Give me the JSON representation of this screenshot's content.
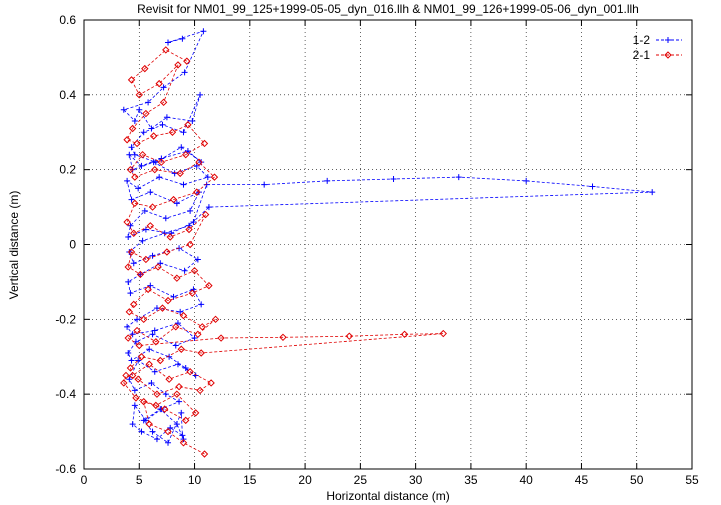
{
  "chart_data": {
    "type": "scatter",
    "title": "Revisit for NM01_99_125+1999-05-05_dyn_016.llh & NM01_99_126+1999-05-06_dyn_001.llh",
    "xlabel": "Horizontal distance (m)",
    "ylabel": "Vertical distance (m)",
    "xlim": [
      0,
      55
    ],
    "ylim": [
      -0.6,
      0.6
    ],
    "x_ticks": [
      0,
      5,
      10,
      15,
      20,
      25,
      30,
      35,
      40,
      45,
      50,
      55
    ],
    "y_ticks": [
      -0.6,
      -0.4,
      -0.2,
      0,
      0.2,
      0.4,
      0.6
    ],
    "x_tick_labels": [
      "0",
      "5",
      "10",
      "15",
      "20",
      "25",
      "30",
      "35",
      "40",
      "45",
      "50",
      "55"
    ],
    "y_tick_labels": [
      "-0.6",
      "-0.4",
      "-0.2",
      "0",
      "0.2",
      "0.4",
      "0.6"
    ],
    "grid": true,
    "legend_position": "top-right",
    "series": [
      {
        "name": "1-2",
        "color": "#0000ff",
        "marker": "plus",
        "x": [
          8.9,
          7.6,
          10.8,
          9.1,
          7.2,
          5.8,
          3.6,
          4.6,
          5.0,
          6.1,
          7.5,
          9.8,
          10.5,
          9.0,
          7.1,
          5.4,
          4.3,
          4.6,
          6.5,
          8.8,
          10.6,
          9.4,
          7.0,
          5.2,
          4.1,
          4.4,
          6.3,
          8.2,
          10.2,
          11.2,
          9.0,
          6.8,
          4.9,
          3.9,
          4.3,
          6.0,
          8.4,
          10.4,
          9.6,
          7.4,
          5.5,
          4.2,
          4.0,
          5.6,
          7.9,
          9.9,
          11.1,
          16.3,
          22.0,
          28.0,
          33.9,
          40.0,
          46.0,
          51.4,
          11.3,
          9.5,
          7.3,
          5.3,
          4.1,
          4.5,
          6.2,
          8.6,
          10.3,
          9.1,
          6.9,
          5.1,
          4.0,
          4.2,
          6.0,
          8.1,
          9.9,
          10.6,
          8.7,
          6.6,
          4.8,
          3.9,
          4.4,
          6.4,
          8.5,
          10.0,
          8.3,
          6.2,
          4.7,
          4.0,
          4.3,
          5.9,
          7.7,
          9.2,
          10.1,
          8.5,
          6.4,
          4.9,
          4.1,
          4.6,
          6.1,
          7.4,
          8.6,
          7.0,
          5.6,
          4.6,
          4.4,
          5.2,
          6.6,
          7.8,
          8.9,
          8.8,
          7.6,
          6.2,
          5.4,
          6.9,
          8.4,
          9.0
        ],
        "y": [
          0.55,
          0.54,
          0.57,
          0.46,
          0.42,
          0.38,
          0.36,
          0.33,
          0.36,
          0.31,
          0.34,
          0.33,
          0.4,
          0.3,
          0.32,
          0.3,
          0.26,
          0.24,
          0.22,
          0.26,
          0.22,
          0.25,
          0.23,
          0.21,
          0.24,
          0.2,
          0.22,
          0.19,
          0.21,
          0.18,
          0.16,
          0.18,
          0.15,
          0.17,
          0.12,
          0.14,
          0.11,
          0.14,
          0.09,
          0.07,
          0.09,
          0.05,
          0.02,
          0.04,
          0.03,
          0.06,
          0.16,
          0.16,
          0.17,
          0.175,
          0.18,
          0.17,
          0.155,
          0.14,
          0.1,
          0.05,
          0.03,
          0.01,
          -0.02,
          -0.05,
          -0.03,
          -0.01,
          -0.04,
          -0.07,
          -0.05,
          -0.08,
          -0.1,
          -0.13,
          -0.11,
          -0.14,
          -0.12,
          -0.16,
          -0.18,
          -0.17,
          -0.2,
          -0.22,
          -0.24,
          -0.23,
          -0.21,
          -0.25,
          -0.27,
          -0.24,
          -0.26,
          -0.29,
          -0.31,
          -0.28,
          -0.3,
          -0.33,
          -0.35,
          -0.32,
          -0.34,
          -0.31,
          -0.36,
          -0.39,
          -0.37,
          -0.4,
          -0.42,
          -0.44,
          -0.47,
          -0.43,
          -0.48,
          -0.5,
          -0.52,
          -0.49,
          -0.51,
          -0.45,
          -0.53,
          -0.5,
          -0.47,
          -0.44,
          -0.48,
          -0.52
        ]
      },
      {
        "name": "2-1",
        "color": "#e00000",
        "marker": "diamond",
        "x": [
          9.3,
          7.4,
          5.5,
          4.3,
          5.0,
          6.8,
          8.5,
          7.2,
          5.6,
          4.4,
          3.9,
          4.8,
          6.3,
          8.0,
          9.4,
          10.9,
          9.2,
          7.0,
          5.3,
          4.2,
          4.6,
          6.4,
          8.7,
          10.4,
          11.8,
          10.2,
          8.1,
          6.2,
          4.6,
          3.9,
          4.5,
          6.0,
          7.8,
          9.5,
          11.0,
          9.6,
          7.5,
          5.6,
          4.3,
          4.0,
          5.1,
          6.7,
          8.4,
          10.0,
          11.3,
          9.8,
          7.6,
          5.8,
          4.5,
          4.1,
          5.4,
          7.1,
          9.0,
          10.7,
          11.9,
          10.3,
          8.3,
          6.5,
          4.8,
          4.0,
          5.0,
          12.4,
          18.0,
          24.0,
          29.0,
          32.5,
          10.6,
          8.8,
          6.9,
          5.2,
          4.2,
          4.4,
          5.9,
          7.7,
          9.6,
          11.5,
          10.5,
          8.6,
          6.6,
          4.9,
          3.8,
          3.6,
          4.7,
          6.5,
          8.4,
          10.1,
          9.2,
          7.3,
          5.4,
          5.9,
          7.6,
          9.0,
          10.9
        ],
        "y": [
          0.49,
          0.52,
          0.47,
          0.44,
          0.4,
          0.43,
          0.48,
          0.38,
          0.35,
          0.31,
          0.28,
          0.27,
          0.29,
          0.3,
          0.32,
          0.27,
          0.24,
          0.22,
          0.24,
          0.2,
          0.18,
          0.2,
          0.19,
          0.22,
          0.18,
          0.14,
          0.12,
          0.1,
          0.11,
          0.06,
          0.03,
          0.05,
          0.02,
          0.04,
          0.08,
          0.0,
          -0.02,
          -0.04,
          -0.02,
          -0.06,
          -0.08,
          -0.06,
          -0.09,
          -0.07,
          -0.11,
          -0.13,
          -0.15,
          -0.12,
          -0.16,
          -0.18,
          -0.2,
          -0.17,
          -0.19,
          -0.22,
          -0.2,
          -0.24,
          -0.22,
          -0.26,
          -0.23,
          -0.25,
          -0.27,
          -0.25,
          -0.248,
          -0.245,
          -0.24,
          -0.238,
          -0.29,
          -0.28,
          -0.31,
          -0.3,
          -0.33,
          -0.35,
          -0.32,
          -0.36,
          -0.34,
          -0.37,
          -0.39,
          -0.38,
          -0.4,
          -0.36,
          -0.35,
          -0.37,
          -0.41,
          -0.43,
          -0.4,
          -0.45,
          -0.47,
          -0.44,
          -0.42,
          -0.48,
          -0.5,
          -0.53,
          -0.56
        ]
      }
    ]
  }
}
